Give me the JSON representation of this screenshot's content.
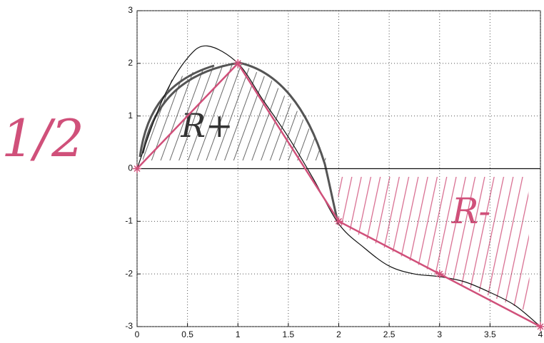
{
  "chart_data": {
    "type": "line",
    "xlim": [
      0,
      4
    ],
    "ylim": [
      -3,
      3
    ],
    "xticks": [
      0,
      0.5,
      1,
      1.5,
      2,
      2.5,
      3,
      3.5,
      4
    ],
    "yticks": [
      -3,
      -2,
      -1,
      0,
      1,
      2,
      3
    ],
    "grid": true,
    "series": [
      {
        "color": "#111111",
        "marker": "none",
        "x": [
          0,
          0.25,
          0.5,
          0.7,
          1,
          1.25,
          1.5,
          1.75,
          2,
          2.25,
          2.5,
          2.75,
          3,
          3.25,
          3.5,
          3.75,
          4
        ],
        "values": [
          0,
          1.3,
          2.1,
          2.33,
          2.0,
          1.3,
          0.6,
          -0.2,
          -1.05,
          -1.5,
          -1.85,
          -2.0,
          -2.05,
          -2.15,
          -2.35,
          -2.6,
          -3
        ]
      },
      {
        "color": "#d0507a",
        "marker": "star",
        "x": [
          0,
          1,
          2,
          3,
          4
        ],
        "values": [
          0,
          2,
          -1,
          -2,
          -3
        ]
      }
    ],
    "annotations": [
      "1/2",
      "R+",
      "R-"
    ]
  }
}
